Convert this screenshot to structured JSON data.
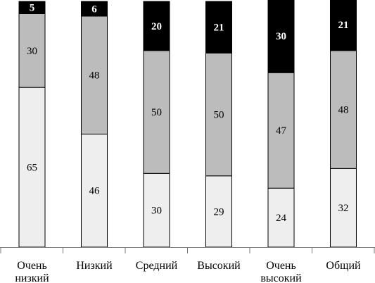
{
  "chart_data": {
    "type": "bar",
    "stacked": true,
    "percent": true,
    "title": "",
    "xlabel": "",
    "ylabel": "",
    "ylim": [
      0,
      100
    ],
    "grid": false,
    "legend": "none",
    "categories": [
      [
        "Очень",
        "низкий"
      ],
      [
        "Низкий"
      ],
      [
        "Средний"
      ],
      [
        "Высокий"
      ],
      [
        "Очень",
        "высокий"
      ],
      [
        "Общий"
      ]
    ],
    "series": [
      {
        "values": [
          65,
          46,
          30,
          29,
          24,
          32
        ],
        "color": "#eeeeee",
        "label_color": "#000000",
        "bold": false
      },
      {
        "values": [
          30,
          48,
          50,
          50,
          47,
          48
        ],
        "color": "#bcbcbc",
        "label_color": "#000000",
        "bold": false
      },
      {
        "values": [
          5,
          6,
          20,
          21,
          30,
          21
        ],
        "color": "#000000",
        "label_color": "#ffffff",
        "bold": true
      }
    ]
  }
}
